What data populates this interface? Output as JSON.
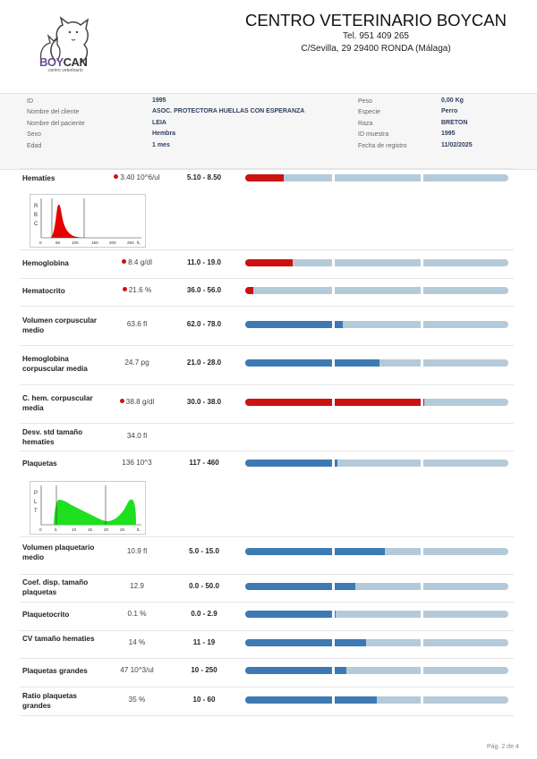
{
  "logo": {
    "brand_a": "BOY",
    "brand_b": "CAN",
    "subtitle": "centro veterinario"
  },
  "clinic": {
    "name": "CENTRO VETERINARIO BOYCAN",
    "tel": "Tel. 951 409 265",
    "address": "C/Sevilla, 29  29400 RONDA (Málaga)"
  },
  "patient": {
    "id_label": "ID",
    "id": "1995",
    "client_label": "Nombre del cliente",
    "client": "ASOC. PROTECTORA HUELLAS CON ESPERANZA",
    "patient_label": "Nombre del paciente",
    "patient_name": "LEIA",
    "sex_label": "Sexo",
    "sex": "Hembra",
    "age_label": "Edad",
    "age": "1 mes",
    "weight_label": "Peso",
    "weight": "0,00 Kg",
    "species_label": "Especie",
    "species": "Perro",
    "breed_label": "Raza",
    "breed": "BRETON",
    "sample_label": "ID muestra",
    "sample": "1995",
    "date_label": "Fecha de registro",
    "date": "11/02/2025"
  },
  "colors": {
    "normal": "#3d7ab3",
    "abnormal": "#cc1111",
    "track": "#b5cad9",
    "flag": "#cc1111"
  },
  "rows": [
    {
      "name": "Hematíes",
      "result": "3.40 10^6/ul",
      "flag": true,
      "range": "5.10 - 8.50",
      "fill": 0.145,
      "level": "low"
    },
    {
      "name": "Hemoglobina",
      "result": "8.4 g/dl",
      "flag": true,
      "range": "11.0 - 19.0",
      "fill": 0.18,
      "level": "low"
    },
    {
      "name": "Hematocrito",
      "result": "21.6 %",
      "flag": true,
      "range": "36.0 - 56.0",
      "fill": 0.03,
      "level": "low"
    },
    {
      "name": "Volumen corpuscular medio",
      "result": "63.6 fl",
      "flag": false,
      "range": "62.0 - 78.0",
      "fill": 0.37,
      "level": "normal"
    },
    {
      "name": "Hemoglobina corpuscular media",
      "result": "24.7 pg",
      "flag": false,
      "range": "21.0 - 28.0",
      "fill": 0.51,
      "level": "normal"
    },
    {
      "name": "C. hem. corpuscular media",
      "result": "38.8 g/dl",
      "flag": true,
      "range": "30.0 - 38.0",
      "fill": 0.68,
      "level": "high"
    },
    {
      "name": "Desv. std tamaño hematies",
      "result": "34.0 fl",
      "flag": false,
      "range": "",
      "fill": null,
      "level": "none"
    },
    {
      "name": "Plaquetas",
      "result": "136 10^3",
      "flag": false,
      "range": "117 - 460",
      "fill": 0.35,
      "level": "normal"
    },
    {
      "name": "Volumen plaquetario medio",
      "result": "10.9 fl",
      "flag": false,
      "range": "5.0 - 15.0",
      "fill": 0.53,
      "level": "normal"
    },
    {
      "name": "Coef. disp. tamaño plaquetas",
      "result": "12.9",
      "flag": false,
      "range": "0.0 - 50.0",
      "fill": 0.42,
      "level": "normal"
    },
    {
      "name": "Plaquetocrito",
      "result": "0.1 %",
      "flag": false,
      "range": "0.0 - 2.9",
      "fill": 0.345,
      "level": "normal"
    },
    {
      "name": "CV tamaño hematies",
      "result": "14 %",
      "flag": false,
      "range": "11 - 19",
      "fill": 0.46,
      "level": "normal"
    },
    {
      "name": "Plaquetas grandes",
      "result": "47 10^3/ul",
      "flag": false,
      "range": "10 - 250",
      "fill": 0.385,
      "level": "normal"
    },
    {
      "name": "Ratio plaquetas grandes",
      "result": "35 %",
      "flag": false,
      "range": "10 - 60",
      "fill": 0.5,
      "level": "normal"
    }
  ],
  "histograms": {
    "rbc": {
      "letters": [
        "R",
        "B",
        "C"
      ],
      "ticks": [
        "0",
        "50",
        "100",
        "150",
        "200",
        "250",
        "fL"
      ]
    },
    "plt": {
      "letters": [
        "P",
        "L",
        "T"
      ],
      "ticks": [
        "0",
        "5",
        "10",
        "15",
        "20",
        "25",
        "fL"
      ]
    }
  },
  "footer": {
    "page": "Pág. 2 de 4"
  }
}
